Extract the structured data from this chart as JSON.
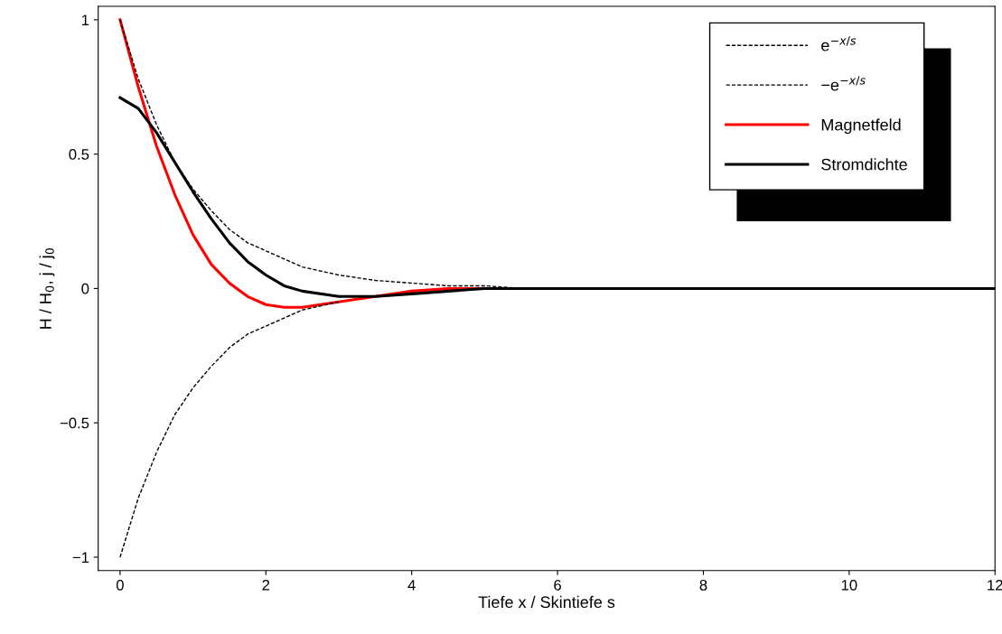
{
  "chart_data": {
    "type": "line",
    "xlabel": "Tiefe x / Skintiefe s",
    "ylabel": "H / H$_{0}$, j / j$_{0}$",
    "xlim": [
      -0.3,
      12
    ],
    "ylim": [
      -1.05,
      1.05
    ],
    "xticks": [
      0,
      2,
      4,
      6,
      8,
      10,
      12
    ],
    "yticks": [
      {
        "value": -1,
        "label": "−1"
      },
      {
        "value": -0.5,
        "label": "−0.5"
      },
      0,
      0.5,
      1
    ],
    "grid": false,
    "legend": "top right",
    "series": [
      {
        "name": "e$^{−x/s}$",
        "color": "#000000",
        "line_style": "dashed",
        "x": [
          0,
          0.25,
          0.5,
          0.75,
          1,
          1.25,
          1.5,
          1.75,
          2,
          2.5,
          3,
          3.5,
          4,
          4.5,
          5,
          5.5
        ],
        "values": [
          1,
          0.78,
          0.61,
          0.47,
          0.37,
          0.29,
          0.22,
          0.17,
          0.14,
          0.08,
          0.05,
          0.03,
          0.02,
          0.01,
          0.01,
          0.0
        ]
      },
      {
        "name": "−e$^{−x/s}$",
        "color": "#000000",
        "line_style": "dashed",
        "x": [
          0,
          0.25,
          0.5,
          0.75,
          1,
          1.25,
          1.5,
          1.75,
          2,
          2.5,
          3
        ],
        "values": [
          -1,
          -0.78,
          -0.61,
          -0.47,
          -0.37,
          -0.29,
          -0.22,
          -0.17,
          -0.14,
          -0.08,
          -0.05
        ]
      },
      {
        "name": "Magnetfeld",
        "color": "#ff0000",
        "line_style": "solid",
        "x": [
          0,
          0.25,
          0.5,
          0.75,
          1,
          1.25,
          1.5,
          1.75,
          2,
          2.25,
          2.5,
          2.75,
          3,
          3.5,
          4,
          4.5,
          5,
          5.5,
          6
        ],
        "values": [
          1,
          0.75,
          0.53,
          0.35,
          0.2,
          0.09,
          0.02,
          -0.03,
          -0.06,
          -0.07,
          -0.07,
          -0.06,
          -0.05,
          -0.03,
          -0.01,
          0.0,
          0.0,
          0.0,
          0.0
        ]
      },
      {
        "name": "Stromdichte",
        "color": "#000000",
        "line_style": "solid",
        "x": [
          0,
          0.25,
          0.5,
          0.75,
          1,
          1.25,
          1.5,
          1.75,
          2,
          2.25,
          2.5,
          3,
          3.5,
          4,
          5,
          6,
          8,
          10,
          12
        ],
        "values": [
          0.71,
          0.67,
          0.58,
          0.47,
          0.36,
          0.26,
          0.17,
          0.1,
          0.05,
          0.01,
          -0.01,
          -0.03,
          -0.03,
          -0.02,
          0.0,
          0.0,
          0.0,
          0.0,
          0.0
        ]
      }
    ]
  }
}
